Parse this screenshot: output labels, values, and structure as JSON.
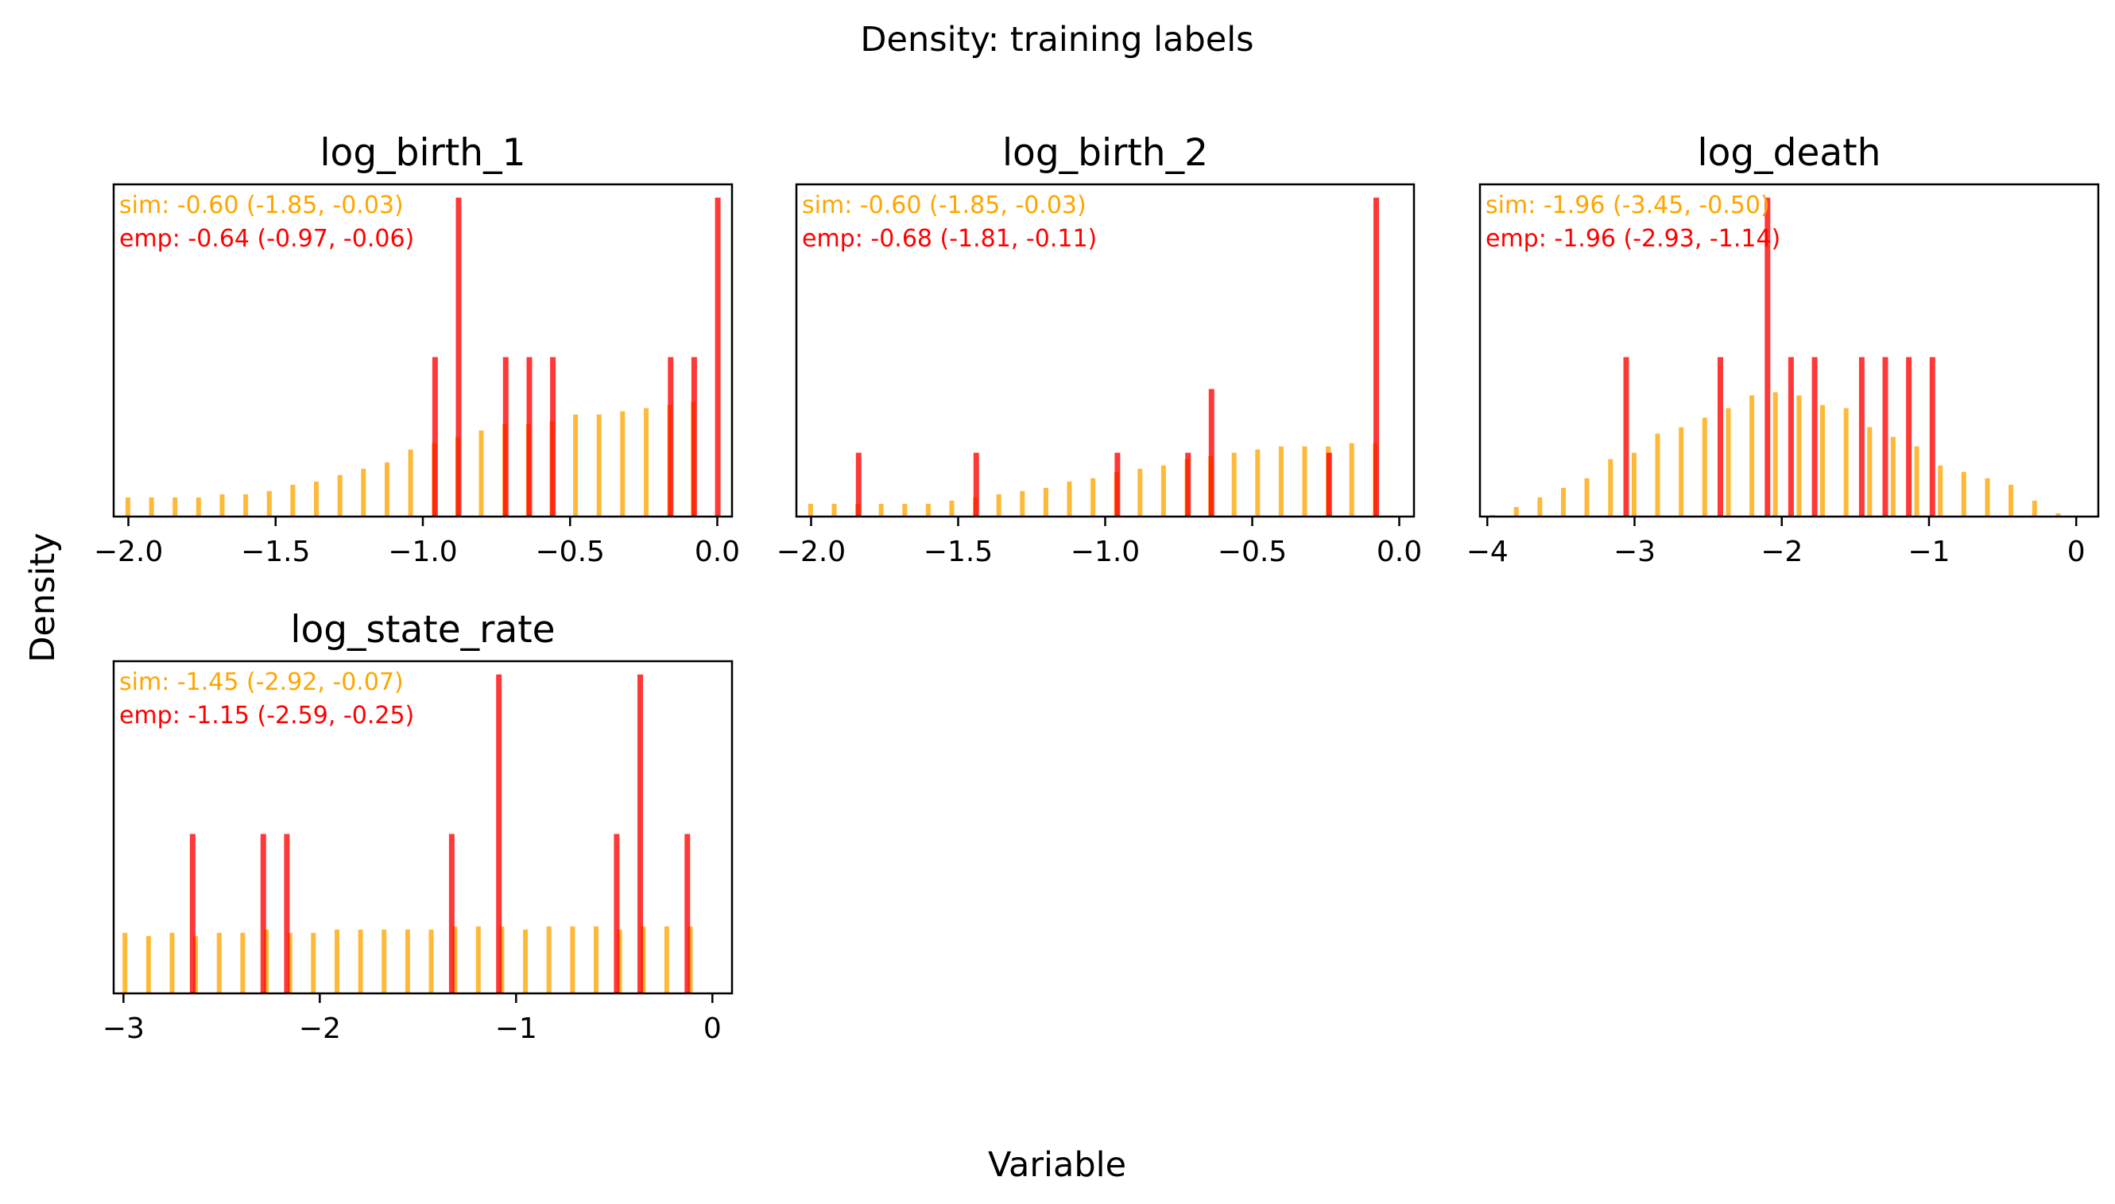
{
  "figure": {
    "title": "Density: training labels",
    "xlabel": "Variable",
    "ylabel": "Density"
  },
  "colors": {
    "sim": "#ffa500",
    "emp": "#ff0000"
  },
  "chart_data": [
    {
      "type": "bar",
      "title": "log_birth_1",
      "xlim": [
        -2.05,
        0.05
      ],
      "ylim": [
        0,
        1.0
      ],
      "xticks": [
        -2.0,
        -1.5,
        -1.0,
        -0.5,
        0.0
      ],
      "xtick_labels": [
        "−2.0",
        "−1.5",
        "−1.0",
        "−0.5",
        "0.0"
      ],
      "annotations": {
        "sim": "sim: -0.60 (-1.85, -0.03)",
        "emp": "emp: -0.64 (-0.97, -0.06)"
      },
      "series": [
        {
          "name": "sim",
          "x": [
            -1.98,
            -1.9,
            -1.82,
            -1.74,
            -1.66,
            -1.58,
            -1.5,
            -1.42,
            -1.34,
            -1.26,
            -1.18,
            -1.1,
            -1.02,
            -0.94,
            -0.86,
            -0.78,
            -0.7,
            -0.62,
            -0.54,
            -0.46,
            -0.38,
            -0.3,
            -0.22,
            -0.14,
            -0.06
          ],
          "y": [
            0.06,
            0.06,
            0.06,
            0.06,
            0.07,
            0.07,
            0.08,
            0.1,
            0.11,
            0.13,
            0.15,
            0.17,
            0.21,
            0.23,
            0.25,
            0.27,
            0.29,
            0.29,
            0.3,
            0.32,
            0.32,
            0.33,
            0.34,
            0.35,
            0.36
          ]
        },
        {
          "name": "emp",
          "x": [
            -0.98,
            -0.9,
            -0.74,
            -0.66,
            -0.58,
            -0.18,
            -0.1,
            -0.02
          ],
          "y": [
            0.5,
            1.0,
            0.5,
            0.5,
            0.5,
            0.5,
            0.5,
            1.0
          ]
        }
      ]
    },
    {
      "type": "bar",
      "title": "log_birth_2",
      "xlim": [
        -2.05,
        0.05
      ],
      "ylim": [
        0,
        1.0
      ],
      "xticks": [
        -2.0,
        -1.5,
        -1.0,
        -0.5,
        0.0
      ],
      "xtick_labels": [
        "−2.0",
        "−1.5",
        "−1.0",
        "−0.5",
        "0.0"
      ],
      "annotations": {
        "sim": "sim: -0.60 (-1.85, -0.03)",
        "emp": "emp: -0.68 (-1.81, -0.11)"
      },
      "series": [
        {
          "name": "sim",
          "x": [
            -1.98,
            -1.9,
            -1.82,
            -1.74,
            -1.66,
            -1.58,
            -1.5,
            -1.42,
            -1.34,
            -1.26,
            -1.18,
            -1.1,
            -1.02,
            -0.94,
            -0.86,
            -0.78,
            -0.7,
            -0.62,
            -0.54,
            -0.46,
            -0.38,
            -0.3,
            -0.22,
            -0.14,
            -0.06
          ],
          "y": [
            0.04,
            0.04,
            0.04,
            0.04,
            0.04,
            0.04,
            0.05,
            0.06,
            0.07,
            0.08,
            0.09,
            0.11,
            0.12,
            0.14,
            0.15,
            0.16,
            0.18,
            0.19,
            0.2,
            0.21,
            0.22,
            0.22,
            0.22,
            0.23,
            0.23
          ]
        },
        {
          "name": "emp",
          "x": [
            -1.86,
            -1.46,
            -0.98,
            -0.74,
            -0.66,
            -0.26,
            -0.1
          ],
          "y": [
            0.2,
            0.2,
            0.2,
            0.2,
            0.4,
            0.2,
            1.0
          ]
        }
      ]
    },
    {
      "type": "bar",
      "title": "log_death",
      "xlim": [
        -4.05,
        0.15
      ],
      "ylim": [
        0,
        1.0
      ],
      "xticks": [
        -4,
        -3,
        -2,
        -1,
        0
      ],
      "xtick_labels": [
        "−4",
        "−3",
        "−2",
        "−1",
        "0"
      ],
      "annotations": {
        "sim": "sim: -1.96 (-3.45, -0.50)",
        "emp": "emp: -1.96 (-2.93, -1.14)"
      },
      "series": [
        {
          "name": "sim",
          "x": [
            -3.92,
            -3.76,
            -3.6,
            -3.44,
            -3.28,
            -3.12,
            -2.96,
            -2.8,
            -2.64,
            -2.48,
            -2.32,
            -2.16,
            -2.0,
            -1.84,
            -1.68,
            -1.52,
            -1.36,
            -1.2,
            -1.04,
            -0.88,
            -0.72,
            -0.56,
            -0.4,
            -0.24,
            -0.08
          ],
          "y": [
            0.005,
            0.03,
            0.06,
            0.09,
            0.12,
            0.18,
            0.2,
            0.26,
            0.28,
            0.31,
            0.34,
            0.38,
            0.39,
            0.38,
            0.35,
            0.34,
            0.28,
            0.25,
            0.22,
            0.16,
            0.14,
            0.12,
            0.1,
            0.05,
            0.01
          ]
        },
        {
          "name": "emp",
          "x": [
            -3.1,
            -2.46,
            -2.14,
            -1.98,
            -1.82,
            -1.5,
            -1.34,
            -1.18,
            -1.02
          ],
          "y": [
            0.5,
            0.5,
            1.0,
            0.5,
            0.5,
            0.5,
            0.5,
            0.5,
            0.5
          ]
        }
      ]
    },
    {
      "type": "bar",
      "title": "log_state_rate",
      "xlim": [
        -3.05,
        0.1
      ],
      "ylim": [
        0,
        1.0
      ],
      "xticks": [
        -3,
        -2,
        -1,
        0
      ],
      "xtick_labels": [
        "−3",
        "−2",
        "−1",
        "0"
      ],
      "annotations": {
        "sim": "sim: -1.45 (-2.92, -0.07)",
        "emp": "emp: -1.15 (-2.59, -0.25)"
      },
      "series": [
        {
          "name": "sim",
          "x": [
            -2.96,
            -2.84,
            -2.72,
            -2.6,
            -2.48,
            -2.36,
            -2.24,
            -2.12,
            -2.0,
            -1.88,
            -1.76,
            -1.64,
            -1.52,
            -1.4,
            -1.28,
            -1.16,
            -1.04,
            -0.92,
            -0.8,
            -0.68,
            -0.56,
            -0.44,
            -0.32,
            -0.2,
            -0.08
          ],
          "y": [
            0.19,
            0.18,
            0.19,
            0.18,
            0.19,
            0.19,
            0.2,
            0.19,
            0.19,
            0.2,
            0.2,
            0.2,
            0.2,
            0.2,
            0.21,
            0.21,
            0.21,
            0.2,
            0.21,
            0.21,
            0.21,
            0.2,
            0.21,
            0.21,
            0.21
          ]
        },
        {
          "name": "emp",
          "x": [
            -2.68,
            -2.32,
            -2.2,
            -1.36,
            -1.12,
            -0.52,
            -0.4,
            -0.16
          ],
          "y": [
            0.5,
            0.5,
            0.5,
            0.5,
            1.0,
            0.5,
            1.0,
            0.5
          ]
        }
      ]
    }
  ]
}
